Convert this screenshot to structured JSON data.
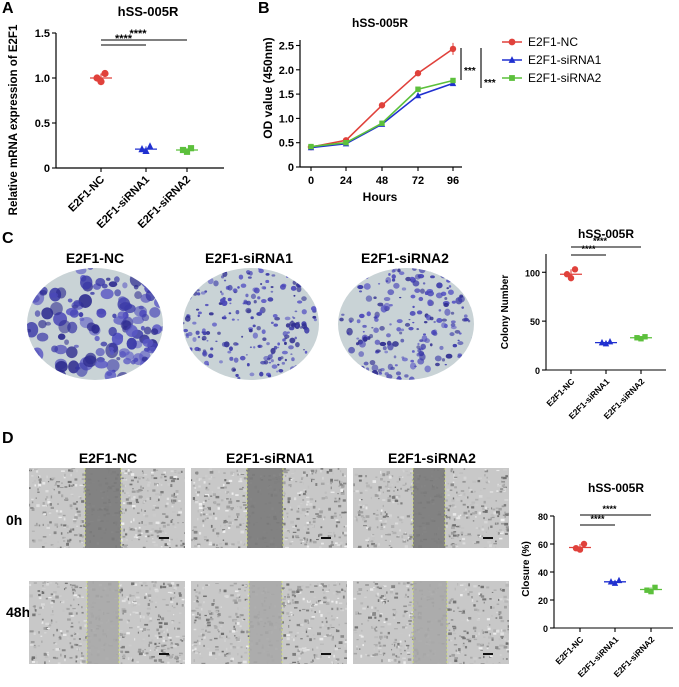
{
  "panel_labels": {
    "a": "A",
    "b": "B",
    "c": "C",
    "d": "D"
  },
  "colors": {
    "nc": "#e0413b",
    "si1": "#2030d0",
    "si2": "#5cc03c",
    "stain": "#3b3aa8",
    "dish_bg": "#c9d3d6"
  },
  "panel_a": {
    "chart_data": {
      "type": "scatter",
      "title": "hSS-005R",
      "ylabel": "Relative mRNA expression of E2F1",
      "ylim": [
        0,
        1.5
      ],
      "yticks": [
        "0",
        "0.5",
        "1.0",
        "1.5"
      ],
      "categories": [
        "E2F1-NC",
        "E2F1-siRNA1",
        "E2F1-siRNA2"
      ],
      "points": [
        [
          1.0,
          1.05,
          0.96
        ],
        [
          0.21,
          0.24,
          0.19
        ],
        [
          0.2,
          0.22,
          0.18
        ]
      ],
      "means": [
        1.0,
        0.21,
        0.2
      ],
      "significance": [
        "****",
        "****"
      ]
    }
  },
  "panel_b": {
    "chart_data": {
      "type": "line",
      "title": "hSS-005R",
      "xlabel": "Hours",
      "ylabel": "OD value (450nm)",
      "x": [
        0,
        24,
        48,
        72,
        96
      ],
      "xticks": [
        "0",
        "24",
        "48",
        "72",
        "96"
      ],
      "ylim": [
        0,
        2.5
      ],
      "yticks": [
        "0",
        "0.5",
        "1.0",
        "1.5",
        "2.0",
        "2.5"
      ],
      "series": [
        {
          "name": "E2F1-NC",
          "values": [
            0.41,
            0.55,
            1.27,
            1.93,
            2.43
          ]
        },
        {
          "name": "E2F1-siRNA1",
          "values": [
            0.4,
            0.48,
            0.88,
            1.47,
            1.72
          ]
        },
        {
          "name": "E2F1-siRNA2",
          "values": [
            0.42,
            0.5,
            0.9,
            1.6,
            1.78
          ]
        }
      ],
      "significance": [
        "***",
        "***"
      ]
    }
  },
  "panel_c": {
    "dish_labels": [
      "E2F1-NC",
      "E2F1-siRNA1",
      "E2F1-siRNA2"
    ],
    "chart_data": {
      "type": "scatter",
      "title": "hSS-005R",
      "ylabel": "Colony Number",
      "ylim": [
        0,
        110
      ],
      "yticks": [
        "0",
        "50",
        "100"
      ],
      "categories": [
        "E2F1-NC",
        "E2F1-siRNA1",
        "E2F1-siRNA2"
      ],
      "points": [
        [
          98,
          103,
          94
        ],
        [
          28,
          29,
          27
        ],
        [
          33,
          34,
          32
        ]
      ],
      "means": [
        98,
        28,
        33
      ],
      "significance": [
        "****",
        "****"
      ]
    }
  },
  "panel_d": {
    "column_labels": [
      "E2F1-NC",
      "E2F1-siRNA1",
      "E2F1-siRNA2"
    ],
    "row_labels": [
      "0h",
      "48h"
    ],
    "chart_data": {
      "type": "scatter",
      "title": "hSS-005R",
      "ylabel": "Closure (%)",
      "ylim": [
        0,
        80
      ],
      "yticks": [
        "0",
        "20",
        "40",
        "60",
        "80"
      ],
      "categories": [
        "E2F1-NC",
        "E2F1-siRNA1",
        "E2F1-siRNA2"
      ],
      "points": [
        [
          57,
          60,
          56
        ],
        [
          33,
          34,
          32
        ],
        [
          27,
          29,
          26
        ]
      ],
      "means": [
        57.5,
        33,
        27.5
      ],
      "significance": [
        "****",
        "****"
      ]
    }
  }
}
